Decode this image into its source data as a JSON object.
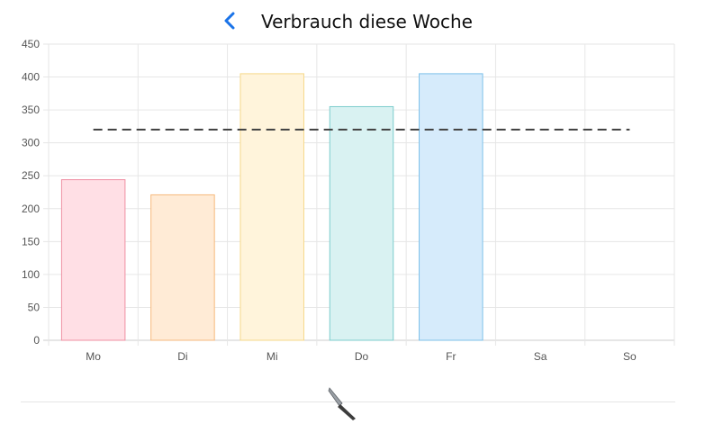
{
  "header": {
    "title": "Verbrauch diese Woche",
    "back_icon": "chevron-left-icon"
  },
  "footer": {
    "icon": "knife-icon"
  },
  "chart_data": {
    "type": "bar",
    "title": "Verbrauch diese Woche",
    "xlabel": "",
    "ylabel": "",
    "categories": [
      "Mo",
      "Di",
      "Mi",
      "Do",
      "Fr",
      "Sa",
      "So"
    ],
    "values": [
      244,
      221,
      405,
      355,
      405,
      0,
      0
    ],
    "ylim": [
      0,
      450
    ],
    "yticks": [
      0,
      50,
      100,
      150,
      200,
      250,
      300,
      350,
      400,
      450
    ],
    "reference_line": {
      "value": 320,
      "style": "dashed",
      "color": "#444444"
    },
    "colors": {
      "fills": [
        "#ffdfe5",
        "#ffebd6",
        "#fff4db",
        "#d9f2f2",
        "#d6ebfb",
        "#e6e6e6",
        "#e6e6e6"
      ],
      "borders": [
        "#ef8fa2",
        "#f6b97c",
        "#f6d889",
        "#7ccccc",
        "#7cc0ea",
        "#cccccc",
        "#cccccc"
      ]
    },
    "grid": true,
    "legend": "none"
  }
}
